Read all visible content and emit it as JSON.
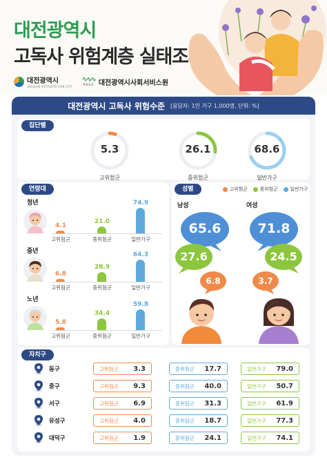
{
  "header": {
    "title_line1": "대전광역시",
    "title_line2": "고독사 위험계층 실태조사",
    "logo1_name": "대전광역시",
    "logo1_sub": "DAEJEON METROPOLITAN CITY",
    "logo2_mark": "PASS",
    "logo2_name": "대전광역시사회서비스원"
  },
  "card": {
    "title": "대전광역시 고독사 위험수준",
    "subtitle": "[응답자: 1인 가구 1,000명, 단위: %]"
  },
  "colors": {
    "high": "#f08a4b",
    "mid": "#8cc63f",
    "general": "#5ea9dc",
    "navy": "#2d4a86"
  },
  "group": {
    "tag": "집단별",
    "items": [
      {
        "label": "고위험군",
        "value": "5.3",
        "pct": 5.3,
        "color": "#f08a4b"
      },
      {
        "label": "중위험군",
        "value": "26.1",
        "pct": 26.1,
        "color": "#8cc63f"
      },
      {
        "label": "일반가구",
        "value": "68.6",
        "pct": 68.6,
        "color": "#9bd0f0"
      }
    ]
  },
  "age": {
    "tag": "연령대",
    "rows": [
      {
        "name": "청년",
        "values": [
          "4.1",
          "21.0",
          "74.9"
        ],
        "nums": [
          4.1,
          21.0,
          74.9
        ]
      },
      {
        "name": "중년",
        "values": [
          "6.8",
          "28.9",
          "64.3"
        ],
        "nums": [
          6.8,
          28.9,
          64.3
        ]
      },
      {
        "name": "노년",
        "values": [
          "5.8",
          "34.4",
          "59.8"
        ],
        "nums": [
          5.8,
          34.4,
          59.8
        ]
      }
    ],
    "labels": [
      "고위험군",
      "중위험군",
      "일반가구"
    ]
  },
  "gender": {
    "tag": "성별",
    "legend": [
      "고위험군",
      "중위험군",
      "일반가구"
    ],
    "male": {
      "name": "남성",
      "general": "65.6",
      "mid": "27.6",
      "high": "6.8"
    },
    "female": {
      "name": "여성",
      "general": "71.8",
      "mid": "24.5",
      "high": "3.7"
    }
  },
  "district": {
    "tag": "자치구",
    "labels": [
      "고위험군",
      "중위험군",
      "일반가구"
    ],
    "rows": [
      {
        "name": "동구",
        "high": "3.3",
        "mid": "17.7",
        "general": "79.0"
      },
      {
        "name": "중구",
        "high": "9.3",
        "mid": "40.0",
        "general": "50.7"
      },
      {
        "name": "서구",
        "high": "6.9",
        "mid": "31.3",
        "general": "61.9"
      },
      {
        "name": "유성구",
        "high": "4.0",
        "mid": "18.7",
        "general": "77.3"
      },
      {
        "name": "대덕구",
        "high": "1.9",
        "mid": "24.1",
        "general": "74.1"
      }
    ]
  }
}
